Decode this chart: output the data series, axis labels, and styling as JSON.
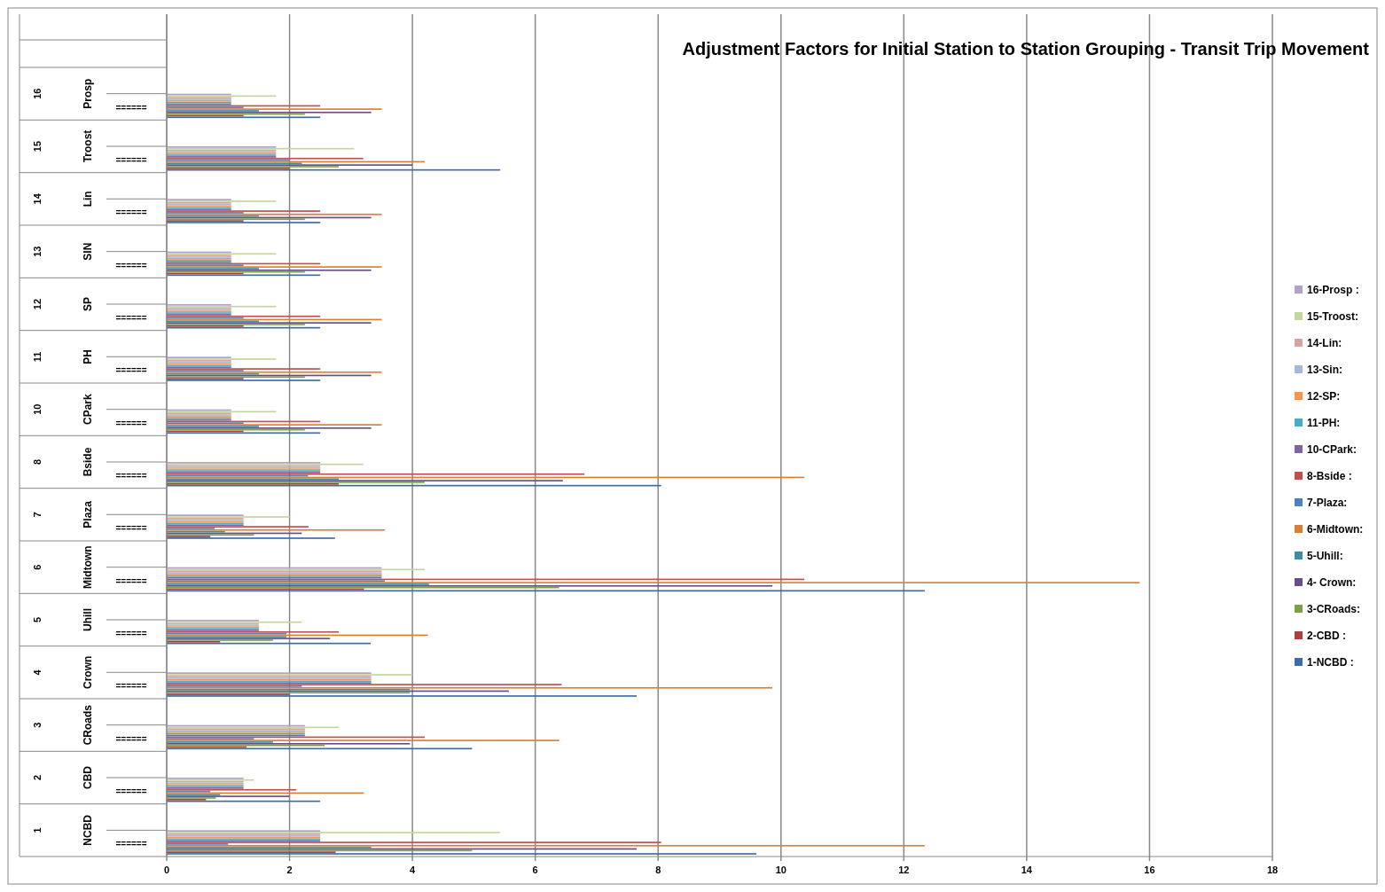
{
  "chart_data": {
    "type": "bar",
    "orientation": "horizontal",
    "title": "Adjustment Factors for Initial Station to Station Grouping - Transit Trip Movement",
    "categories": [
      "Prosp",
      "Troost",
      "Lin",
      "SIN",
      "SP",
      "PH",
      "CPark",
      "Bside",
      "Plaza",
      "Midtown",
      "Uhill",
      "Crown",
      "CRoads",
      "CBD",
      "NCBD"
    ],
    "xlim": [
      0,
      18
    ],
    "xticks": [
      0,
      2,
      4,
      6,
      8,
      10,
      12,
      14,
      16,
      18
    ],
    "grid": "x",
    "legend": "right",
    "annotations": [
      "16",
      "15",
      "14",
      "13",
      "12",
      "11",
      "10",
      "8",
      "7",
      "6",
      "5",
      "4",
      "3",
      "2",
      "1",
      "======",
      "======",
      "======",
      "======",
      "======",
      "======",
      "======",
      "======",
      "======",
      "======",
      "======",
      "======",
      "======",
      "======",
      "======"
    ],
    "series": [
      {
        "name": "1-NCBD :",
        "color": "#3d6ba8",
        "values": [
          2.5,
          5.43,
          2.5,
          2.5,
          2.5,
          2.5,
          2.5,
          8.05,
          2.74,
          12.34,
          3.32,
          7.65,
          4.97,
          2.5,
          9.6
        ]
      },
      {
        "name": "2-CBD :",
        "color": "#a9403d",
        "values": [
          1.25,
          2.0,
          1.25,
          1.25,
          1.25,
          1.25,
          1.25,
          2.8,
          0.71,
          3.21,
          0.87,
          2.0,
          1.3,
          0.64,
          2.75
        ]
      },
      {
        "name": "3-CRoads:",
        "color": "#7f9f44",
        "values": [
          2.25,
          2.8,
          2.25,
          2.25,
          2.25,
          2.25,
          2.25,
          4.2,
          1.42,
          6.39,
          1.73,
          3.96,
          2.57,
          0.8,
          4.97
        ]
      },
      {
        "name": "4- Crown:",
        "color": "#674f86",
        "values": [
          3.33,
          4.0,
          3.33,
          3.33,
          3.33,
          3.33,
          3.33,
          6.45,
          2.2,
          9.86,
          2.66,
          5.57,
          3.96,
          2.0,
          7.65
        ]
      },
      {
        "name": "5-Uhill:",
        "color": "#3a8fa5",
        "values": [
          1.5,
          2.2,
          1.5,
          1.5,
          1.5,
          1.5,
          1.5,
          2.8,
          0.95,
          4.27,
          1.95,
          3.96,
          1.73,
          0.87,
          3.33
        ]
      },
      {
        "name": "6-Midtown:",
        "color": "#d98038",
        "values": [
          3.5,
          4.2,
          3.5,
          3.5,
          3.5,
          3.5,
          3.5,
          10.38,
          3.55,
          15.84,
          4.25,
          9.86,
          6.39,
          3.21,
          12.34
        ]
      },
      {
        "name": "7-Plaza:",
        "color": "#4f81bd",
        "values": [
          1.25,
          2.0,
          1.25,
          1.25,
          1.25,
          1.25,
          1.25,
          2.3,
          0.78,
          3.55,
          1.95,
          2.2,
          1.42,
          0.71,
          1.0
        ]
      },
      {
        "name": "8-Bside :",
        "color": "#c0504d",
        "values": [
          2.5,
          3.2,
          2.5,
          2.5,
          2.5,
          2.5,
          2.5,
          6.8,
          2.31,
          10.38,
          2.8,
          6.43,
          4.2,
          2.11,
          8.05
        ]
      },
      {
        "name": "10-CPark:",
        "color": "#8064a2",
        "values": [
          1.05,
          1.78,
          1.05,
          1.05,
          1.05,
          1.05,
          1.05,
          2.5,
          1.25,
          3.5,
          1.5,
          3.33,
          2.25,
          1.25,
          2.5
        ]
      },
      {
        "name": "11-PH:",
        "color": "#4bacc6",
        "values": [
          1.05,
          1.78,
          1.05,
          1.05,
          1.05,
          1.05,
          1.05,
          2.5,
          1.25,
          3.5,
          1.5,
          3.33,
          2.25,
          1.25,
          2.5
        ]
      },
      {
        "name": "12-SP:",
        "color": "#f79646",
        "values": [
          1.05,
          1.78,
          1.05,
          1.05,
          1.05,
          1.05,
          1.05,
          2.5,
          1.25,
          3.5,
          1.5,
          3.33,
          2.25,
          1.25,
          2.5
        ]
      },
      {
        "name": "13-Sin:",
        "color": "#a7b9d9",
        "values": [
          1.05,
          1.78,
          1.05,
          1.05,
          1.05,
          1.05,
          1.05,
          2.5,
          1.25,
          3.5,
          1.5,
          3.33,
          2.25,
          1.25,
          2.5
        ]
      },
      {
        "name": "14-Lin:",
        "color": "#d9a3a2",
        "values": [
          1.05,
          1.78,
          1.05,
          1.05,
          1.05,
          1.05,
          1.05,
          2.5,
          1.25,
          3.5,
          1.5,
          3.33,
          2.25,
          1.25,
          2.5
        ]
      },
      {
        "name": "15-Troost:",
        "color": "#c3d69b",
        "values": [
          1.78,
          3.05,
          1.78,
          1.78,
          1.78,
          1.78,
          1.78,
          3.2,
          2.0,
          4.2,
          2.2,
          4.0,
          2.8,
          1.42,
          5.43
        ]
      },
      {
        "name": "16-Prosp :",
        "color": "#b3a2c7",
        "values": [
          1.05,
          1.78,
          1.05,
          1.05,
          1.05,
          1.05,
          1.05,
          2.5,
          1.25,
          3.5,
          1.5,
          3.33,
          2.25,
          1.25,
          2.5
        ]
      }
    ]
  }
}
